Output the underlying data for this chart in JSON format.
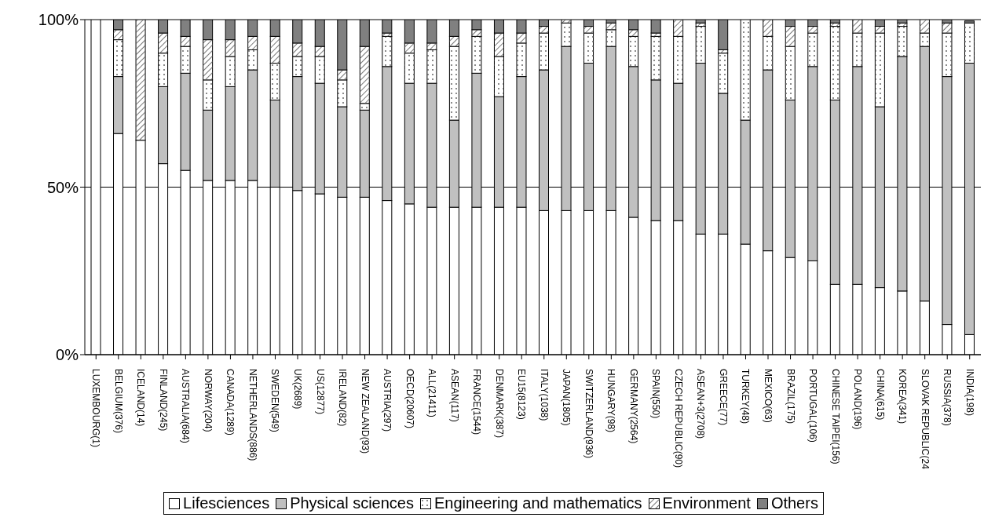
{
  "chart_data": {
    "type": "bar",
    "stacked": true,
    "categories": [
      "LUXEMBOURG(1)",
      "BELGIUM(376)",
      "ICELAND(14)",
      "FINLAND(245)",
      "AUSTRALIA(684)",
      "NORWAY(204)",
      "CANADA(1289)",
      "NETHERLANDS(886)",
      "SWEDEN(549)",
      "UK(2689)",
      "US(12877)",
      "IRELAND(82)",
      "NEW ZEALAND(93)",
      "AUSTRIA(297)",
      "OECD(20607)",
      "ALL(21411)",
      "ASEAN(117)",
      "FRANCE(1544)",
      "DENMARK(387)",
      "EU15(8123)",
      "ITALY(1038)",
      "JAPAN(1805)",
      "SWITZERLAND(936)",
      "HUNGARY(98)",
      "GERMANY(2564)",
      "SPAIN(550)",
      "CZECH REPUBLIC(90)",
      "ASEAN+3(2708)",
      "GREECE(77)",
      "TURKEY(48)",
      "MEXICO(63)",
      "BRAZIL(175)",
      "PORTUGAL(106)",
      "CHINESE TAIPEI(156)",
      "POLAND(196)",
      "CHINA(615)",
      "KOREA(341)",
      "SLOVAK REPUBLIC(24",
      "RUSSIA(378)",
      "INDIA(198)"
    ],
    "series": [
      {
        "name": "Lifesciences",
        "color": "#ffffff",
        "values": [
          100,
          66,
          64,
          57,
          55,
          52,
          52,
          52,
          50,
          49,
          48,
          47,
          47,
          46,
          45,
          44,
          44,
          44,
          44,
          44,
          43,
          43,
          43,
          43,
          41,
          40,
          40,
          36,
          36,
          33,
          31,
          29,
          28,
          21,
          21,
          20,
          19,
          16,
          9,
          6
        ]
      },
      {
        "name": "Physical sciences",
        "color": "#c0c0c0",
        "values": [
          0,
          17,
          0,
          23,
          29,
          21,
          28,
          33,
          26,
          34,
          33,
          27,
          26,
          40,
          36,
          37,
          26,
          40,
          33,
          39,
          42,
          49,
          44,
          49,
          45,
          42,
          41,
          51,
          42,
          37,
          54,
          47,
          58,
          55,
          65,
          54,
          70,
          76,
          74,
          81
        ]
      },
      {
        "name": "Engineering and mathematics",
        "color": "#ffffff",
        "values": [
          0,
          11,
          0,
          10,
          8,
          9,
          9,
          6,
          11,
          6,
          8,
          8,
          2,
          9,
          9,
          10,
          22,
          11,
          12,
          10,
          11,
          7,
          9,
          5,
          9,
          13,
          14,
          11,
          12,
          30,
          10,
          16,
          10,
          22,
          10,
          22,
          9,
          4,
          13,
          12
        ]
      },
      {
        "name": "Environment",
        "color": "#ffffff",
        "values": [
          0,
          3,
          36,
          6,
          3,
          12,
          5,
          4,
          8,
          4,
          3,
          3,
          17,
          1,
          3,
          2,
          3,
          2,
          7,
          3,
          2,
          1,
          2,
          2,
          2,
          1,
          5,
          1,
          1,
          0,
          5,
          6,
          2,
          1,
          4,
          2,
          1,
          4,
          3,
          null
        ]
      },
      {
        "name": "Others",
        "color": "#808080",
        "values": [
          0,
          3,
          0,
          4,
          5,
          6,
          6,
          5,
          5,
          7,
          8,
          15,
          8,
          4,
          7,
          7,
          5,
          3,
          4,
          4,
          2,
          0,
          2,
          1,
          3,
          4,
          0,
          1,
          9,
          0,
          0,
          2,
          2,
          1,
          0,
          2,
          1,
          0,
          1,
          0.6
        ]
      }
    ],
    "ylim": [
      0,
      100
    ],
    "yticks": [
      {
        "value": 0,
        "label": "0%"
      },
      {
        "value": 50,
        "label": "50%"
      },
      {
        "value": 100,
        "label": "100%"
      }
    ],
    "grid": "y",
    "legend": "bottom"
  }
}
